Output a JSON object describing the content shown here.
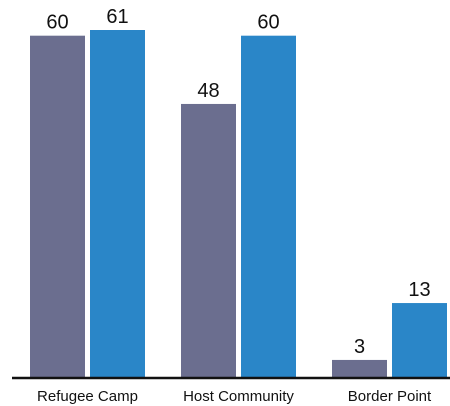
{
  "chart_data": {
    "type": "bar",
    "categories": [
      "Refugee Camp",
      "Host Community",
      "Border Point"
    ],
    "series": [
      {
        "values": [
          60,
          48,
          3
        ],
        "color": "#6b6e8f"
      },
      {
        "values": [
          61,
          60,
          13
        ],
        "color": "#2a86c8"
      }
    ],
    "ylim": [
      0,
      61
    ],
    "grid": false,
    "legend": "none"
  }
}
